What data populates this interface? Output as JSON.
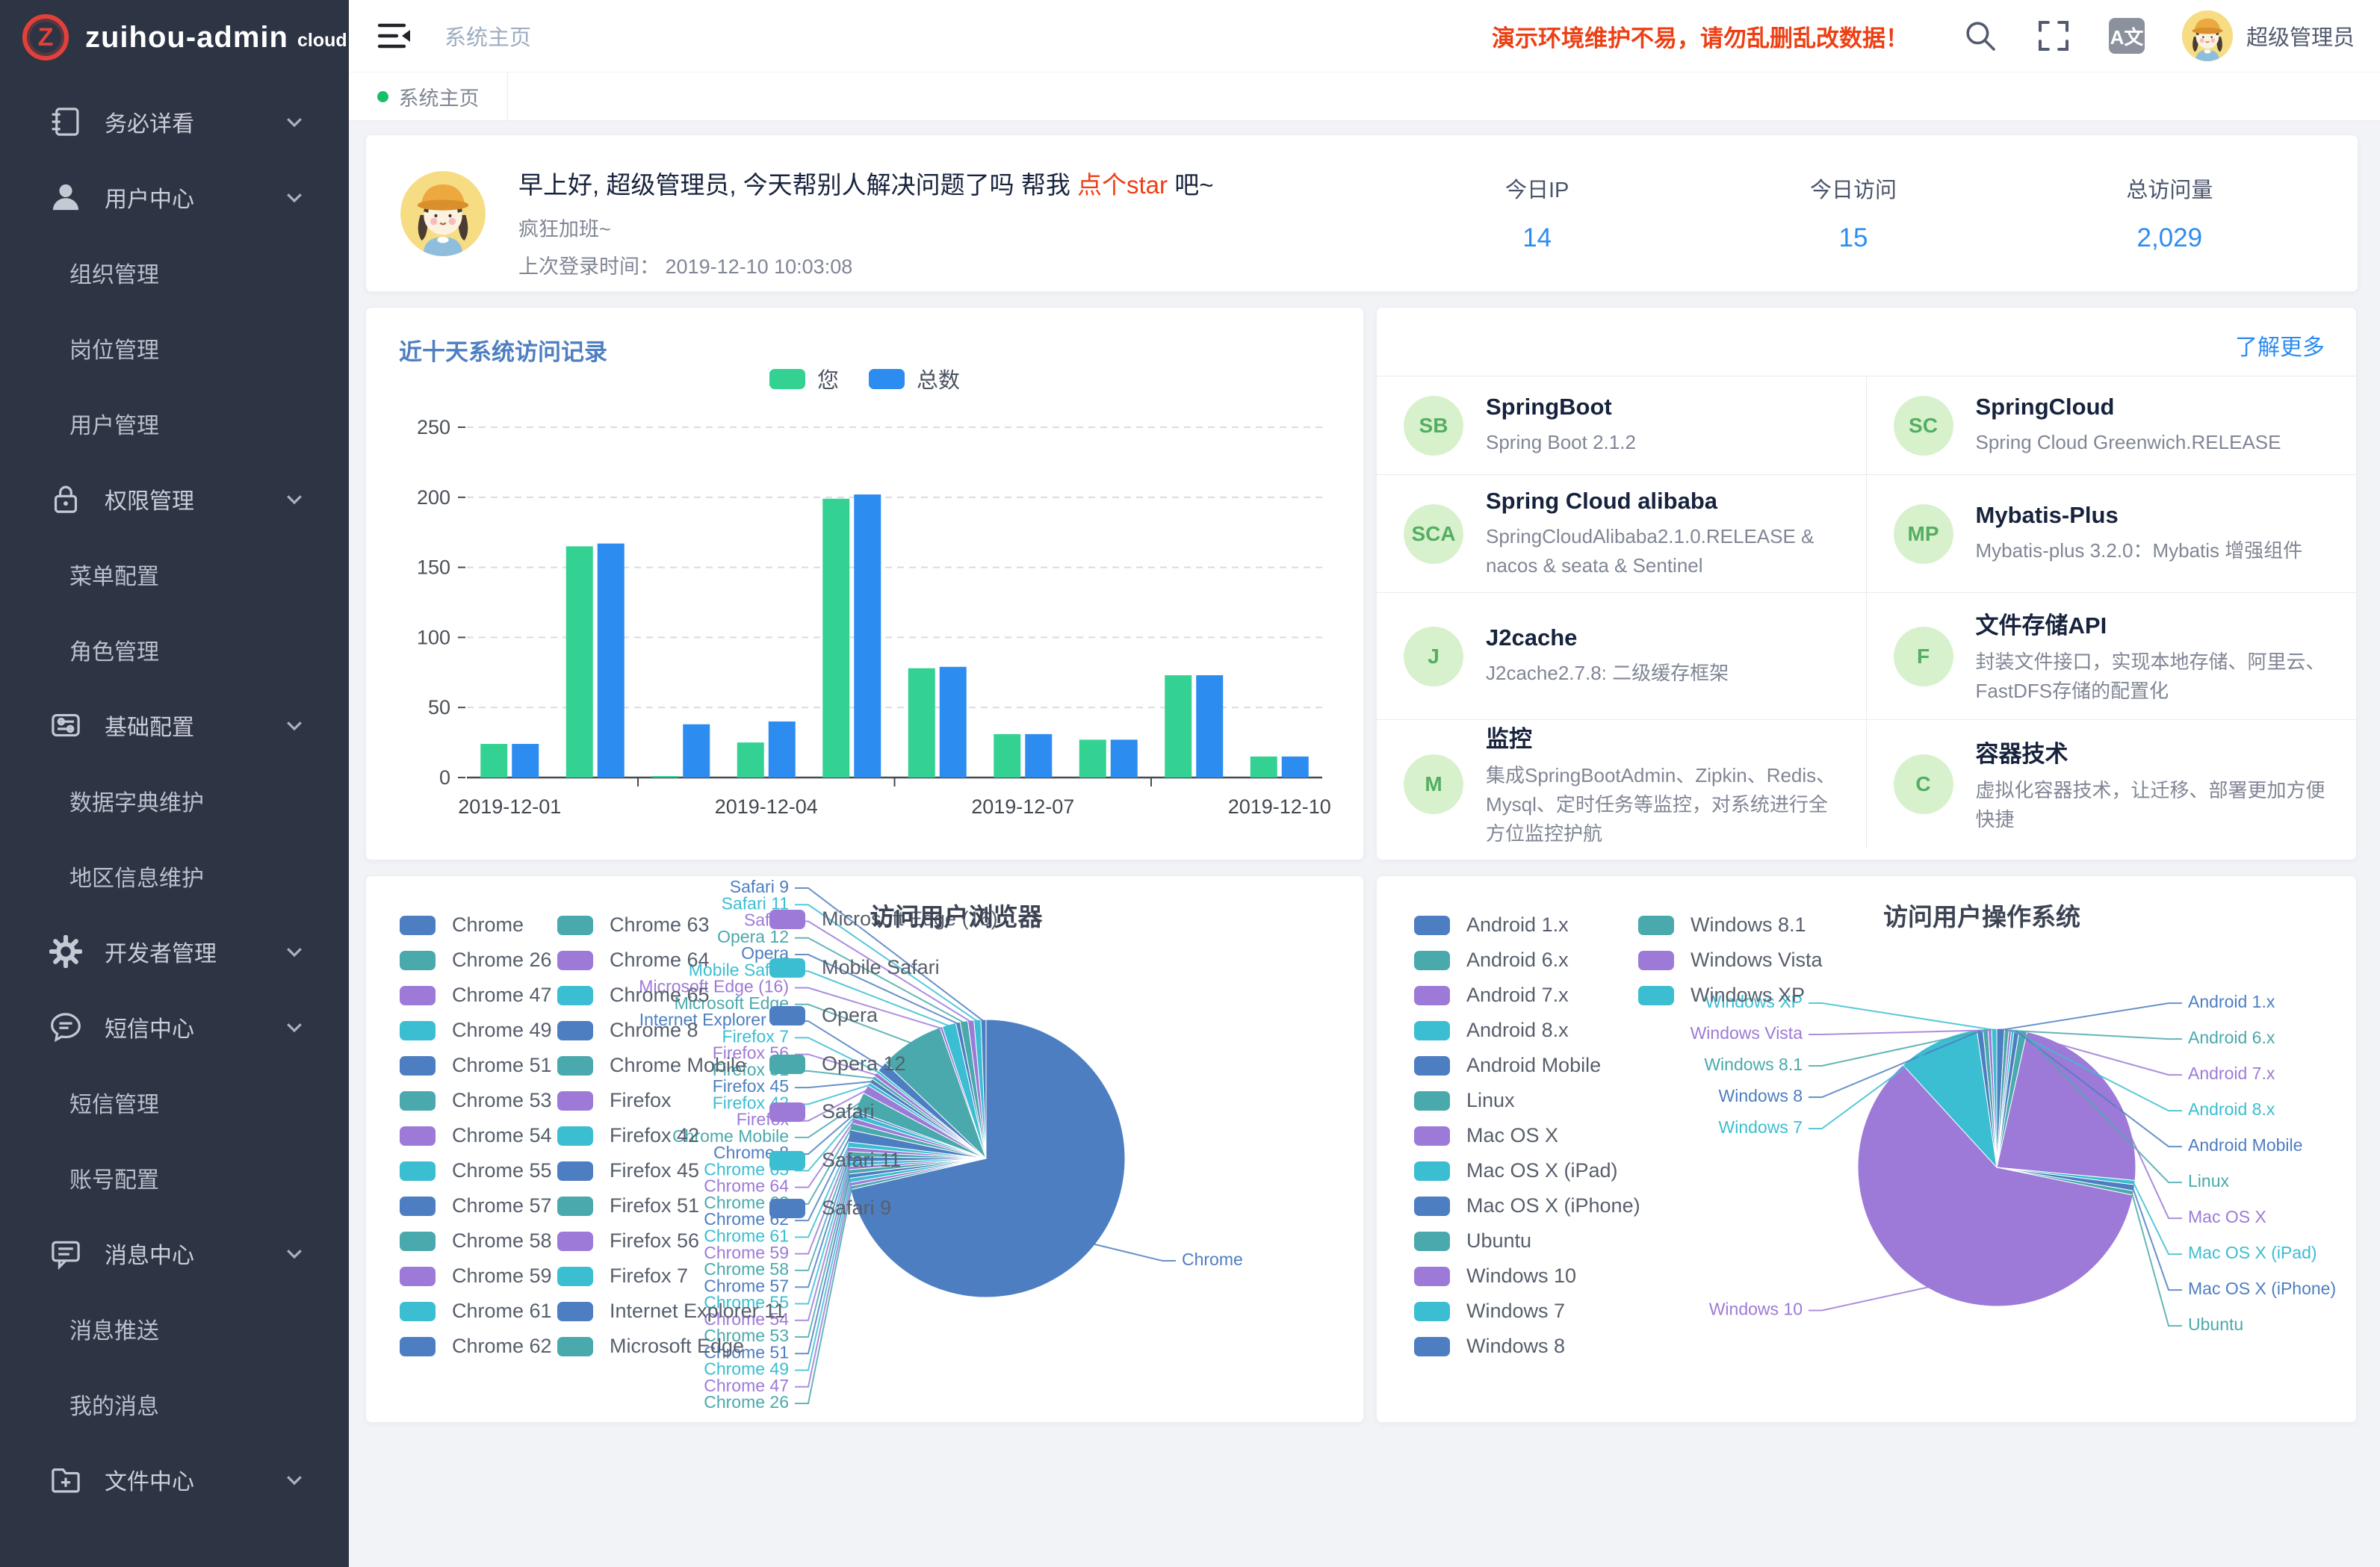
{
  "colors": {
    "accent": "#2d8cf0",
    "green": "#34d292",
    "red": "#ed3f14",
    "pie_palette": [
      "#4d7ec2",
      "#4aa9ac",
      "#9d7ad8",
      "#3bbed1"
    ]
  },
  "sidebar": {
    "logo": {
      "initial": "Z",
      "title": "zuihou-admin",
      "suffix": "cloud"
    },
    "menu": [
      {
        "label": "务必详看",
        "icon": "notebook-icon",
        "type": "group"
      },
      {
        "label": "用户中心",
        "icon": "user-icon",
        "type": "group"
      },
      {
        "label": "组织管理",
        "type": "sub"
      },
      {
        "label": "岗位管理",
        "type": "sub"
      },
      {
        "label": "用户管理",
        "type": "sub"
      },
      {
        "label": "权限管理",
        "icon": "lock-icon",
        "type": "group"
      },
      {
        "label": "菜单配置",
        "type": "sub"
      },
      {
        "label": "角色管理",
        "type": "sub"
      },
      {
        "label": "基础配置",
        "icon": "sliders-icon",
        "type": "group"
      },
      {
        "label": "数据字典维护",
        "type": "sub"
      },
      {
        "label": "地区信息维护",
        "type": "sub"
      },
      {
        "label": "开发者管理",
        "icon": "gear-icon",
        "type": "group"
      },
      {
        "label": "短信中心",
        "icon": "chat-icon",
        "type": "group"
      },
      {
        "label": "短信管理",
        "type": "sub"
      },
      {
        "label": "账号配置",
        "type": "sub"
      },
      {
        "label": "消息中心",
        "icon": "message-icon",
        "type": "group"
      },
      {
        "label": "消息推送",
        "type": "sub"
      },
      {
        "label": "我的消息",
        "type": "sub"
      },
      {
        "label": "文件中心",
        "icon": "folder-icon",
        "type": "group"
      }
    ]
  },
  "header": {
    "breadcrumb": "系统主页",
    "warning": "演示环境维护不易，请勿乱删乱改数据！",
    "translate_label": "A文",
    "username": "超级管理员"
  },
  "tabs": [
    {
      "label": "系统主页",
      "active": true
    }
  ],
  "greeting": {
    "title_prefix": "早上好, 超级管理员, 今天帮别人解决问题了吗 帮我 ",
    "star_link": "点个star",
    "title_suffix": " 吧~",
    "subtitle": "疯狂加班~",
    "last_login_label": "上次登录时间：",
    "last_login_time": "2019-12-10 10:03:08"
  },
  "stats": [
    {
      "label": "今日IP",
      "value": "14"
    },
    {
      "label": "今日访问",
      "value": "15"
    },
    {
      "label": "总访问量",
      "value": "2,029"
    }
  ],
  "panel": {
    "more_link": "了解更多"
  },
  "tech_cards": [
    {
      "initials": "SB",
      "title": "SpringBoot",
      "desc": "Spring Boot 2.1.2"
    },
    {
      "initials": "SC",
      "title": "SpringCloud",
      "desc": "Spring Cloud Greenwich.RELEASE"
    },
    {
      "initials": "SCA",
      "title": "Spring Cloud alibaba",
      "desc": "SpringCloudAlibaba2.1.0.RELEASE & nacos & seata & Sentinel"
    },
    {
      "initials": "MP",
      "title": "Mybatis-Plus",
      "desc": "Mybatis-plus 3.2.0：Mybatis 增强组件"
    },
    {
      "initials": "J",
      "title": "J2cache",
      "desc": "J2cache2.7.8: 二级缓存框架"
    },
    {
      "initials": "F",
      "title": "文件存储API",
      "desc": "封装文件接口，实现本地存储、阿里云、FastDFS存储的配置化"
    },
    {
      "initials": "M",
      "title": "监控",
      "desc": "集成SpringBootAdmin、Zipkin、Redis、Mysql、定时任务等监控，对系统进行全方位监控护航"
    },
    {
      "initials": "C",
      "title": "容器技术",
      "desc": "虚拟化容器技术，让迁移、部署更加方便快捷"
    }
  ],
  "chart_data": [
    {
      "type": "bar",
      "title": "近十天系统访问记录",
      "categories": [
        "2019-12-01",
        "2019-12-02",
        "2019-12-03",
        "2019-12-04",
        "2019-12-05",
        "2019-12-06",
        "2019-12-07",
        "2019-12-08",
        "2019-12-09",
        "2019-12-10"
      ],
      "xtick_labels": [
        "2019-12-01",
        "2019-12-04",
        "2019-12-07",
        "2019-12-10"
      ],
      "series": [
        {
          "name": "您",
          "color": "#34d292",
          "values": [
            24,
            165,
            1,
            25,
            199,
            78,
            31,
            27,
            73,
            15
          ]
        },
        {
          "name": "总数",
          "color": "#2d8cf0",
          "values": [
            24,
            167,
            38,
            40,
            202,
            79,
            31,
            27,
            73,
            15
          ]
        }
      ],
      "ylabel": "",
      "xlabel": "",
      "ylim": [
        0,
        250
      ],
      "yticks": [
        0,
        50,
        100,
        150,
        200,
        250
      ],
      "grid": "dashed",
      "legend_position": "top"
    },
    {
      "type": "pie",
      "title": "访问用户浏览器",
      "items": [
        {
          "name": "Chrome",
          "value": 71.4
        },
        {
          "name": "Chrome 26",
          "value": 0.4
        },
        {
          "name": "Chrome 47",
          "value": 0.4
        },
        {
          "name": "Chrome 49",
          "value": 0.5
        },
        {
          "name": "Chrome 51",
          "value": 0.5
        },
        {
          "name": "Chrome 53",
          "value": 0.5
        },
        {
          "name": "Chrome 54",
          "value": 0.4
        },
        {
          "name": "Chrome 55",
          "value": 0.5
        },
        {
          "name": "Chrome 57",
          "value": 0.6
        },
        {
          "name": "Chrome 58",
          "value": 0.6
        },
        {
          "name": "Chrome 59",
          "value": 0.5
        },
        {
          "name": "Chrome 61",
          "value": 0.6
        },
        {
          "name": "Chrome 62",
          "value": 1.4
        },
        {
          "name": "Chrome 63",
          "value": 0.8
        },
        {
          "name": "Chrome 64",
          "value": 0.6
        },
        {
          "name": "Chrome 65",
          "value": 0.6
        },
        {
          "name": "Chrome 8",
          "value": 0.3
        },
        {
          "name": "Chrome Mobile",
          "value": 2.2
        },
        {
          "name": "Firefox",
          "value": 1.0
        },
        {
          "name": "Firefox 42",
          "value": 0.4
        },
        {
          "name": "Firefox 45",
          "value": 0.5
        },
        {
          "name": "Firefox 51",
          "value": 0.4
        },
        {
          "name": "Firefox 56",
          "value": 0.5
        },
        {
          "name": "Firefox 7",
          "value": 0.3
        },
        {
          "name": "Internet Explorer 11",
          "value": 1.2
        },
        {
          "name": "Microsoft Edge",
          "value": 7.5
        },
        {
          "name": "Microsoft Edge (16)",
          "value": 0.3
        },
        {
          "name": "Mobile Safari",
          "value": 1.6
        },
        {
          "name": "Opera",
          "value": 0.5
        },
        {
          "name": "Opera 12",
          "value": 0.9
        },
        {
          "name": "Safari",
          "value": 0.7
        },
        {
          "name": "Safari 11",
          "value": 0.8
        },
        {
          "name": "Safari 9",
          "value": 0.6
        }
      ]
    },
    {
      "type": "pie",
      "title": "访问用户操作系统",
      "items": [
        {
          "name": "Android 1.x",
          "value": 0.9
        },
        {
          "name": "Android 6.x",
          "value": 0.5
        },
        {
          "name": "Android 7.x",
          "value": 0.3
        },
        {
          "name": "Android 8.x",
          "value": 0.3
        },
        {
          "name": "Android Mobile",
          "value": 0.6
        },
        {
          "name": "Linux",
          "value": 0.9
        },
        {
          "name": "Mac OS X",
          "value": 23.0
        },
        {
          "name": "Mac OS X (iPad)",
          "value": 0.5
        },
        {
          "name": "Mac OS X (iPhone)",
          "value": 0.7
        },
        {
          "name": "Ubuntu",
          "value": 0.5
        },
        {
          "name": "Windows 10",
          "value": 60.0
        },
        {
          "name": "Windows 7",
          "value": 9.5
        },
        {
          "name": "Windows 8",
          "value": 0.7
        },
        {
          "name": "Windows 8.1",
          "value": 0.6
        },
        {
          "name": "Windows Vista",
          "value": 0.4
        },
        {
          "name": "Windows XP",
          "value": 0.6
        }
      ]
    }
  ]
}
